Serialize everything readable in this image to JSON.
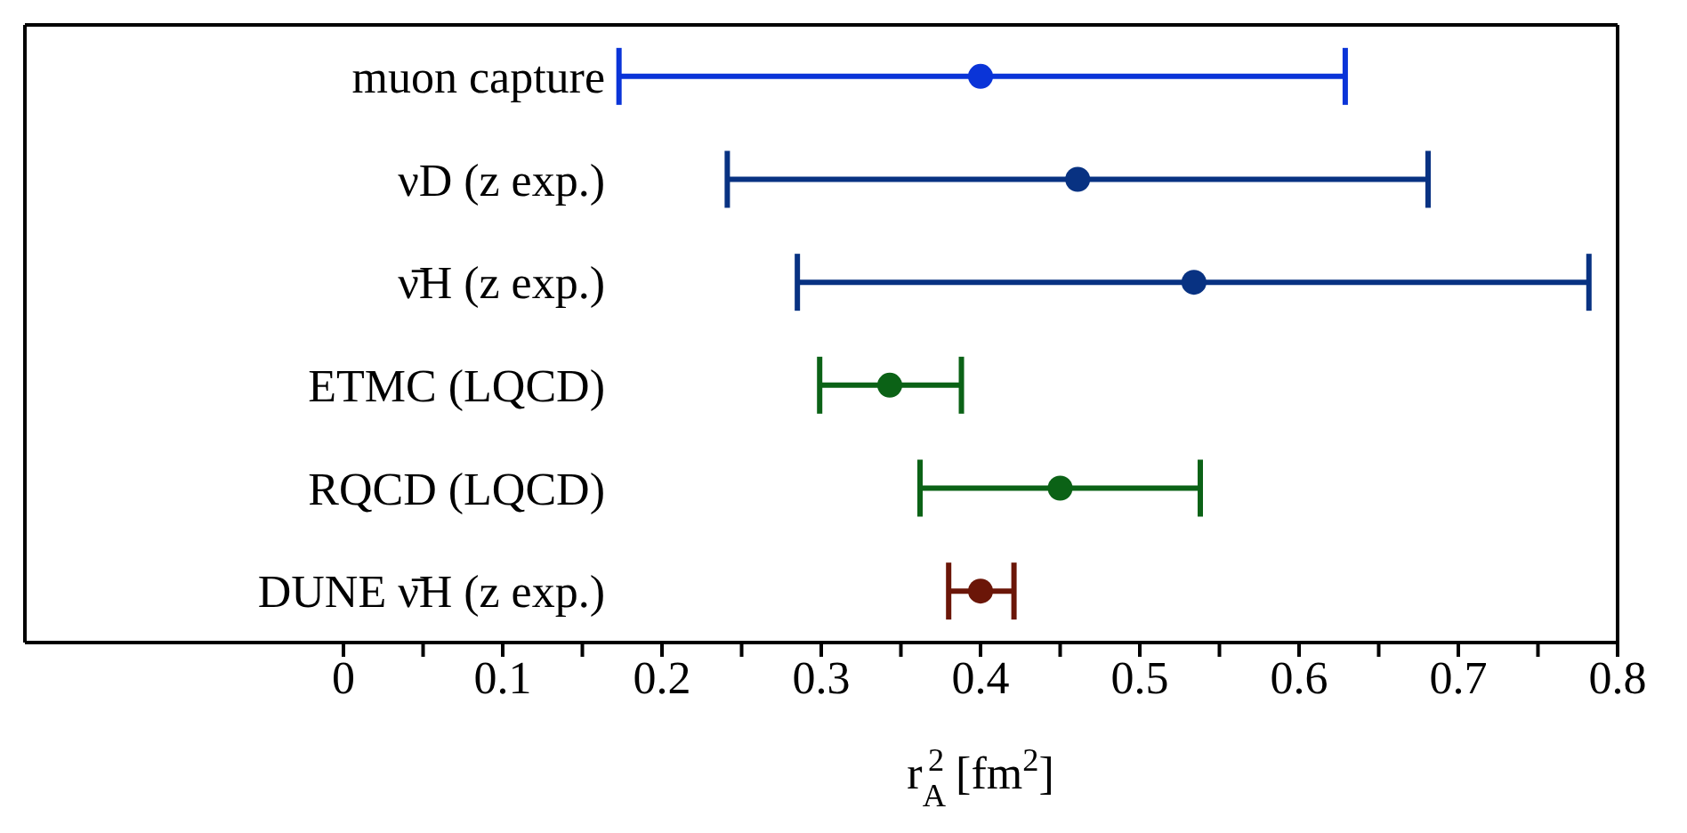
{
  "chart_data": {
    "type": "scatter",
    "xlabel": "r$_{A}$$^{2}$ [fm$^{2}$]",
    "categories": [
      "muon capture",
      "νD (z exp.)",
      "ν̄H (z exp.)",
      "ETMC (LQCD)",
      "RQCD (LQCD)",
      "DUNE ν̄H (z exp.)"
    ],
    "series": [
      {
        "values": [
          0.4,
          0.461,
          0.534,
          0.343,
          0.45,
          0.4
        ],
        "colors": [
          "#0a34d8",
          "#083282",
          "#083282",
          "#0b6216",
          "#0b6216",
          "#6b1608"
        ],
        "errors": [
          [
            0.173,
            0.629
          ],
          [
            0.241,
            0.681
          ],
          [
            0.285,
            0.782
          ],
          [
            0.299,
            0.388
          ],
          [
            0.362,
            0.538
          ],
          [
            0.38,
            0.421
          ]
        ]
      }
    ],
    "orientation": "horizontal",
    "marker": "circle",
    "xlim": [
      -0.2,
      0.8
    ],
    "xticks": [
      0,
      {
        "value": 0.05,
        "label": null
      },
      0.1,
      {
        "value": 0.15,
        "label": null
      },
      0.2,
      {
        "value": 0.25,
        "label": null
      },
      0.3,
      {
        "value": 0.35,
        "label": null
      },
      0.4,
      {
        "value": 0.45,
        "label": null
      },
      0.5,
      {
        "value": 0.55,
        "label": null
      },
      0.6,
      {
        "value": 0.65,
        "label": null
      },
      0.7,
      {
        "value": 0.75,
        "label": null
      },
      0.8
    ],
    "tick_labels": true
  }
}
